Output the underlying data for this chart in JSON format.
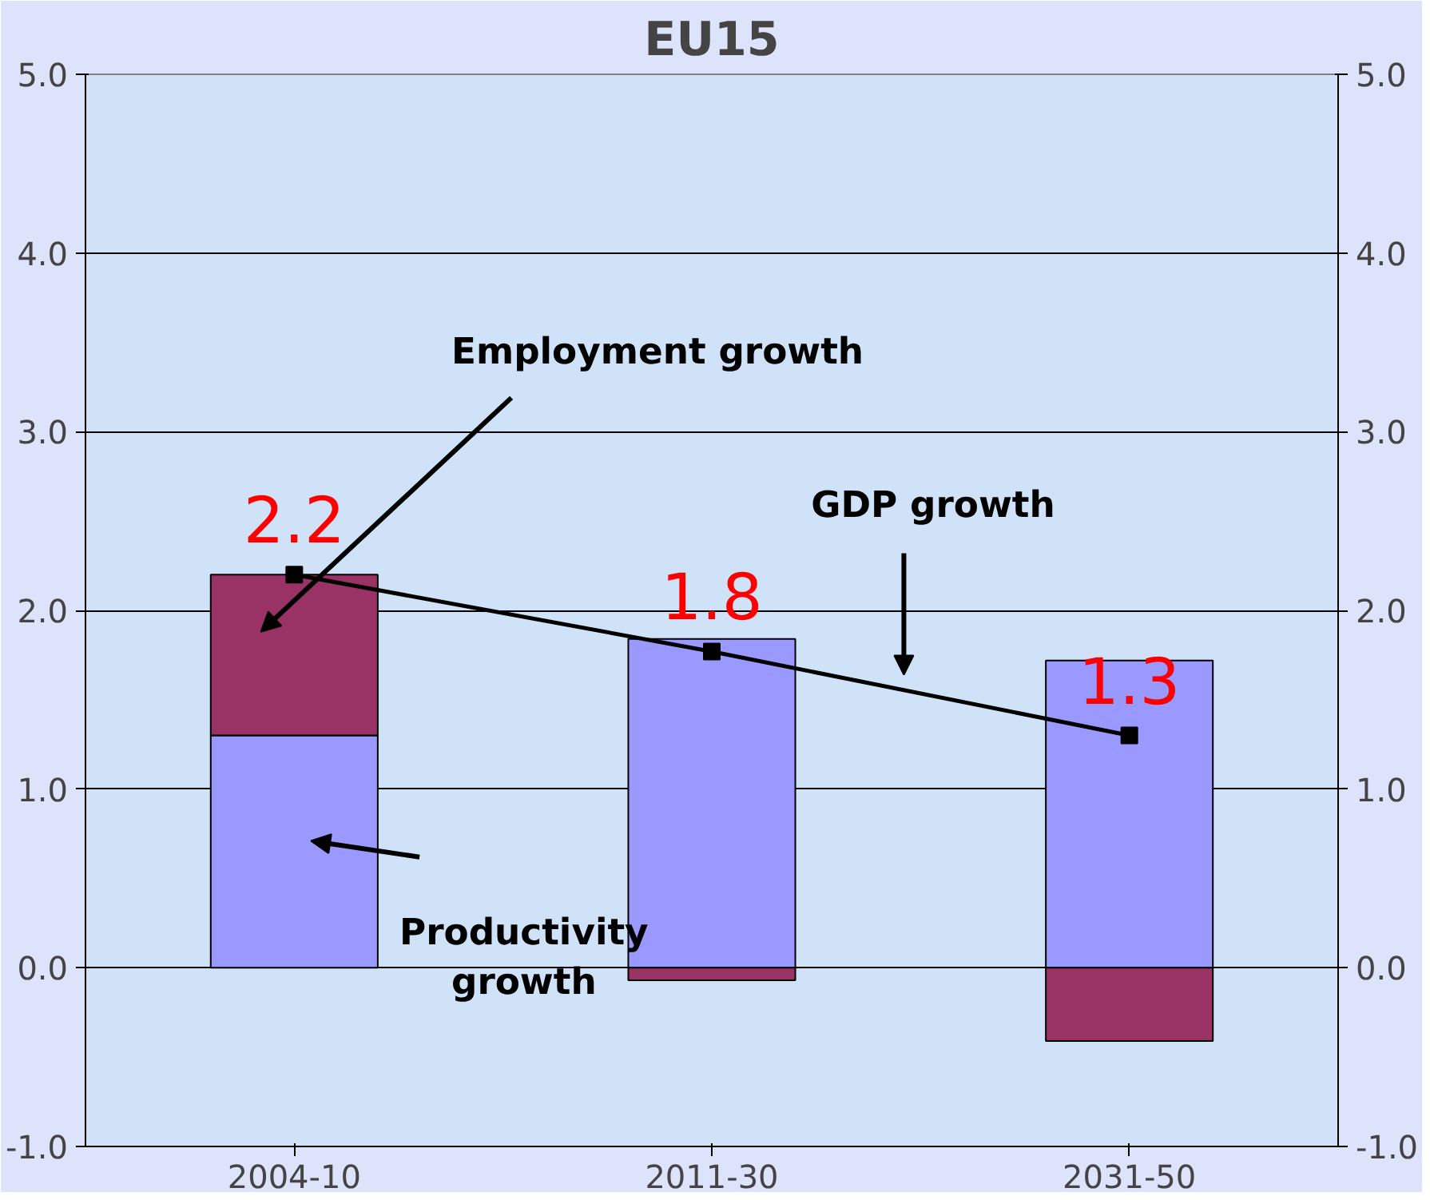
{
  "chart_data": {
    "type": "bar",
    "title": "EU15",
    "categories": [
      "2004-10",
      "2011-30",
      "2031-50"
    ],
    "stacked": true,
    "series": [
      {
        "color": "#9999ff",
        "values": [
          1.3,
          1.84,
          1.72
        ]
      },
      {
        "color": "#993366",
        "values": [
          0.9,
          -0.07,
          -0.41
        ]
      },
      {
        "type": "line",
        "color": "#000000",
        "values": [
          2.2,
          1.77,
          1.3
        ],
        "value_labels": [
          "2.2",
          "1.8",
          "1.3"
        ],
        "marker": "square",
        "line_style": "solid"
      }
    ],
    "ylim": [
      -1,
      5
    ],
    "yticks": [
      {
        "value": -1,
        "label": "-1.0"
      },
      {
        "value": 0,
        "label": "0.0"
      },
      {
        "value": 1,
        "label": "1.0"
      },
      {
        "value": 2,
        "label": "2.0"
      },
      {
        "value": 3,
        "label": "3.0"
      },
      {
        "value": 4,
        "label": "4.0"
      },
      {
        "value": 5,
        "label": "5.0"
      }
    ],
    "y2lim": [
      -1,
      5
    ],
    "y2ticks": [
      {
        "value": -1,
        "label": "-1.0"
      },
      {
        "value": 0,
        "label": "0.0"
      },
      {
        "value": 1,
        "label": "1.0"
      },
      {
        "value": 2,
        "label": "2.0"
      },
      {
        "value": 3,
        "label": "3.0"
      },
      {
        "value": 4,
        "label": "4.0"
      },
      {
        "value": 5,
        "label": "5.0"
      }
    ],
    "grid": "y",
    "annotations": [
      "Employment growth",
      "GDP growth",
      "Productivity\ngrowth"
    ]
  }
}
